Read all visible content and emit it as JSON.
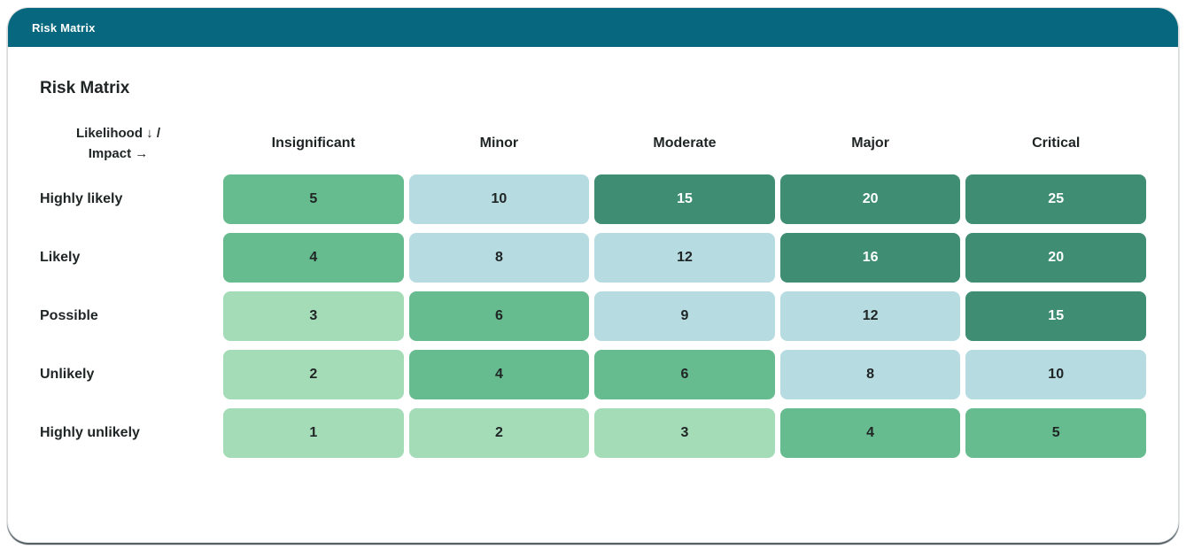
{
  "window": {
    "titlebar": "Risk Matrix"
  },
  "page": {
    "heading": "Risk Matrix"
  },
  "matrix": {
    "corner": {
      "line1": "Likelihood ↓  /",
      "line2": "Impact →"
    },
    "columns": [
      "Insignificant",
      "Minor",
      "Moderate",
      "Major",
      "Critical"
    ],
    "rows": [
      {
        "label": "Highly likely",
        "cells": [
          {
            "value": "5",
            "level": "moderate"
          },
          {
            "value": "10",
            "level": "elevated"
          },
          {
            "value": "15",
            "level": "high"
          },
          {
            "value": "20",
            "level": "high"
          },
          {
            "value": "25",
            "level": "high"
          }
        ]
      },
      {
        "label": "Likely",
        "cells": [
          {
            "value": "4",
            "level": "moderate"
          },
          {
            "value": "8",
            "level": "elevated"
          },
          {
            "value": "12",
            "level": "elevated"
          },
          {
            "value": "16",
            "level": "high"
          },
          {
            "value": "20",
            "level": "high"
          }
        ]
      },
      {
        "label": "Possible",
        "cells": [
          {
            "value": "3",
            "level": "low"
          },
          {
            "value": "6",
            "level": "moderate"
          },
          {
            "value": "9",
            "level": "elevated"
          },
          {
            "value": "12",
            "level": "elevated"
          },
          {
            "value": "15",
            "level": "high"
          }
        ]
      },
      {
        "label": "Unlikely",
        "cells": [
          {
            "value": "2",
            "level": "low"
          },
          {
            "value": "4",
            "level": "moderate"
          },
          {
            "value": "6",
            "level": "moderate"
          },
          {
            "value": "8",
            "level": "elevated"
          },
          {
            "value": "10",
            "level": "elevated"
          }
        ]
      },
      {
        "label": "Highly unlikely",
        "cells": [
          {
            "value": "1",
            "level": "low"
          },
          {
            "value": "2",
            "level": "low"
          },
          {
            "value": "3",
            "level": "low"
          },
          {
            "value": "4",
            "level": "moderate"
          },
          {
            "value": "5",
            "level": "moderate"
          }
        ]
      }
    ]
  },
  "palette": {
    "low": {
      "bg": "#a4dcb8",
      "text": "#202526"
    },
    "moderate": {
      "bg": "#67bc8f",
      "text": "#202526"
    },
    "elevated": {
      "bg": "#b6dbe1",
      "text": "#202526"
    },
    "high": {
      "bg": "#3f8d73",
      "text": "#ffffff"
    }
  },
  "colors": {
    "titlebar_bg": "#06677e",
    "card_bg": "#ffffff",
    "text_dark": "#1f2425"
  }
}
